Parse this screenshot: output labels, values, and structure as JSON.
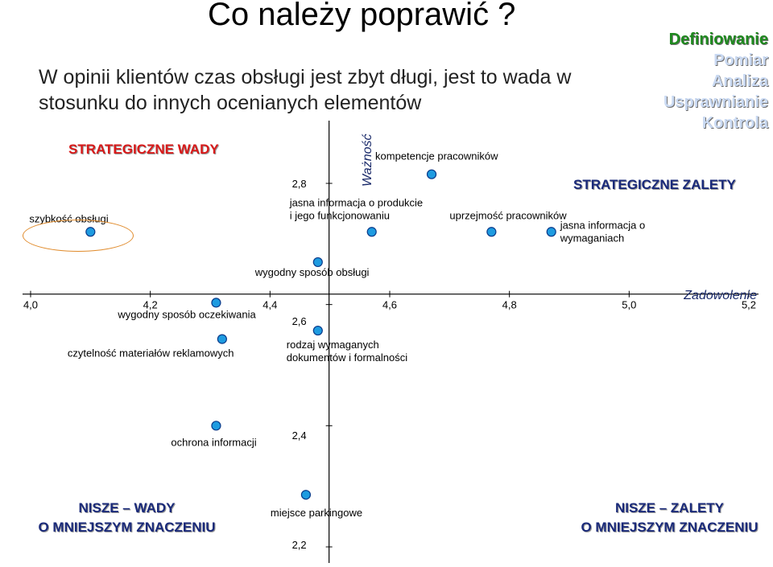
{
  "slide": {
    "title": "Co należy poprawić ?",
    "subtitle": "W opinii klientów czas obsługi jest zbyt długi, jest to wada w stosunku do innych ocenianych elementów",
    "process_steps": [
      {
        "label": "Definiowanie",
        "active": true
      },
      {
        "label": "Pomiar",
        "active": false
      },
      {
        "label": "Analiza",
        "active": false
      },
      {
        "label": "Usprawnianie",
        "active": false
      },
      {
        "label": "Kontrola",
        "active": false
      }
    ],
    "quadrants": {
      "top_left": "STRATEGICZNE WADY",
      "top_right": "STRATEGICZNE ZALETY",
      "bottom_left_line1": "NISZE – WADY",
      "bottom_left_line2": "O MNIEJSZYM ZNACZENIU",
      "bottom_right_line1": "NISZE – ZALETY",
      "bottom_right_line2": "O MNIEJSZYM ZNACZENIU"
    },
    "colors": {
      "active_step": "#1f8a1f",
      "inactive_step": "#c9d9f2",
      "strategic_weakness": "#d81a1a",
      "quadrant_text": "#1a2a7a",
      "point_fill": "#1e9be0",
      "callout": "#e08a2a"
    }
  },
  "chart_data": {
    "type": "scatter",
    "xlabel": "Zadowolenie",
    "ylabel": "Ważność",
    "xlim": [
      4.0,
      5.2
    ],
    "ylim": [
      2.2,
      2.8
    ],
    "x_ticks": [
      "4,0",
      "4,2",
      "4,4",
      "4,6",
      "4,8",
      "5,0",
      "5,2"
    ],
    "y_ticks": [
      "2,8",
      "2,6",
      "2,4",
      "2,2"
    ],
    "points": [
      {
        "label": "kompetencje pracowników",
        "x": 4.67,
        "y": 2.815
      },
      {
        "label": "szybkość obsługi",
        "x": 4.1,
        "y": 2.72
      },
      {
        "label": "jasna informacja o produkcie i jego funkcjonowaniu",
        "x": 4.57,
        "y": 2.72
      },
      {
        "label": "uprzejmość pracowników",
        "x": 4.77,
        "y": 2.72
      },
      {
        "label": "jasna informacja o wymaganiach",
        "x": 4.87,
        "y": 2.72
      },
      {
        "label": "wygodny sposób obsługi",
        "x": 4.48,
        "y": 2.67
      },
      {
        "label": "wygodny sposób oczekiwania",
        "x": 4.31,
        "y": 2.603
      },
      {
        "label": "czytelność materiałów reklamowych",
        "x": 4.32,
        "y": 2.543
      },
      {
        "label": "rodzaj wymaganych dokumentów i formalności",
        "x": 4.48,
        "y": 2.557
      },
      {
        "label": "ochrona informacji",
        "x": 4.31,
        "y": 2.4
      },
      {
        "label": "miejsce parkingowe",
        "x": 4.46,
        "y": 2.286
      }
    ]
  }
}
